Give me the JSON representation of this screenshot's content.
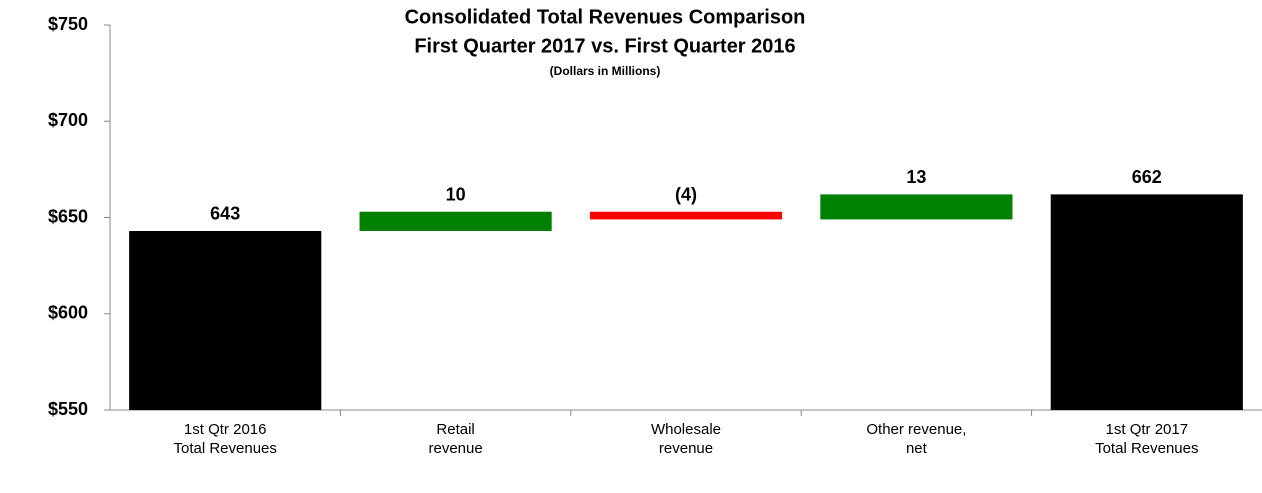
{
  "chart_data": {
    "type": "waterfall",
    "title": [
      "Consolidated Total Revenues Comparison",
      "First Quarter 2017 vs. First Quarter 2016"
    ],
    "subtitle": "(Dollars in Millions)",
    "categories": [
      [
        "1st Qtr 2016",
        "Total Revenues"
      ],
      [
        "Retail",
        "revenue"
      ],
      [
        "Wholesale",
        "revenue"
      ],
      [
        "Other revenue,",
        "net"
      ],
      [
        "1st Qtr 2017",
        "Total Revenues"
      ]
    ],
    "values": [
      643,
      10,
      -4,
      13,
      662
    ],
    "value_labels": [
      "643",
      "10",
      "(4)",
      "13",
      "662"
    ],
    "colors": [
      "#000000",
      "#008000",
      "#ff0000",
      "#008000",
      "#000000"
    ],
    "ylim": [
      550,
      750
    ],
    "yticks": [
      {
        "value": 550,
        "label": "$550"
      },
      {
        "value": 600,
        "label": "$600"
      },
      {
        "value": 650,
        "label": "$650"
      },
      {
        "value": 700,
        "label": "$700"
      },
      {
        "value": 750,
        "label": "$750"
      }
    ],
    "grid": false
  }
}
